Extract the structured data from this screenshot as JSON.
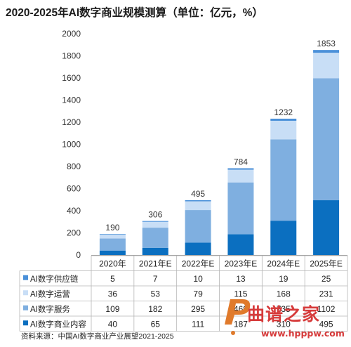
{
  "chart_data": {
    "type": "bar",
    "stacked": true,
    "title": "2020-2025年AI数字商业规模测算（单位：亿元，%）",
    "categories": [
      "2020年",
      "2021年E",
      "2022年E",
      "2023年E",
      "2024年E",
      "2025年E"
    ],
    "totals": [
      "190",
      "306",
      "495",
      "784",
      "1232",
      "1853"
    ],
    "ylim": [
      0,
      2000
    ],
    "yticks": [
      0,
      200,
      400,
      600,
      800,
      1000,
      1200,
      1400,
      1600,
      1800,
      2000
    ],
    "grid": false,
    "legend_placement": "table-left",
    "series": [
      {
        "name": "AI数字商业内容",
        "color": "#0b6fc0",
        "values": [
          40,
          65,
          111,
          187,
          310,
          495
        ],
        "labels": [
          "40",
          "65",
          "111",
          "187",
          "310",
          "495"
        ]
      },
      {
        "name": "AI数字服务",
        "color": "#7fafe0",
        "values": [
          109,
          182,
          295,
          469,
          735,
          1102
        ],
        "labels": [
          "109",
          "182",
          "295",
          "469",
          "735",
          "1102"
        ]
      },
      {
        "name": "AI数字运营",
        "color": "#c8def6",
        "values": [
          36,
          53,
          79,
          115,
          168,
          231
        ],
        "labels": [
          "36",
          "53",
          "79",
          "115",
          "168",
          "231"
        ]
      },
      {
        "name": "AI数字供应链",
        "color": "#4a90d9",
        "values": [
          5,
          7,
          10,
          13,
          19,
          25
        ],
        "labels": [
          "5",
          "7",
          "10",
          "13",
          "19",
          "25"
        ]
      }
    ],
    "table_row_order": [
      "AI数字供应链",
      "AI数字运营",
      "AI数字服务",
      "AI数字商业内容"
    ]
  },
  "source": "资料来源：中国AI数字商业产业展望2021-2025",
  "watermark": {
    "text": "曲谱之家",
    "url": "www.hpppw.com",
    "color": "#d63a3a"
  }
}
